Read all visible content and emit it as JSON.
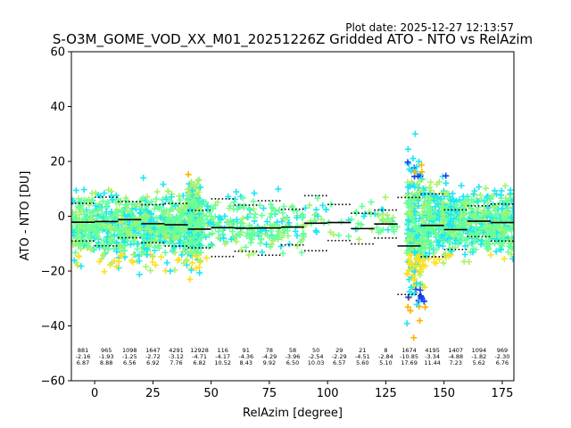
{
  "header": {
    "plot_date": "Plot date: 2025-12-27 12:13:57",
    "title": "S-O3M_GOME_VOD_XX_M01_20251226Z Gridded ATO - NTO vs RelAzim"
  },
  "chart_data": {
    "type": "scatter",
    "title": "S-O3M_GOME_VOD_XX_M01_20251226Z Gridded ATO - NTO vs RelAzim",
    "xlabel": "RelAzim [degree]",
    "ylabel": "ATO - NTO [DU]",
    "xlim": [
      -10,
      180
    ],
    "ylim": [
      -60,
      60
    ],
    "xticks": [
      0,
      25,
      50,
      75,
      100,
      125,
      150,
      175
    ],
    "yticks": [
      -60,
      -40,
      -20,
      0,
      20,
      40,
      60
    ],
    "marker": "+",
    "colors": {
      "cyan": "#1ee6f5",
      "green": "#66ff99",
      "light_green": "#a6f26b",
      "yellow": "#ffe01e",
      "orange": "#ffb000",
      "blue": "#1a3cf0",
      "median_line": "#000000"
    },
    "bins": [
      {
        "center": -5,
        "count": "881",
        "median": "-2.16",
        "spread": "6.87"
      },
      {
        "center": 5,
        "count": "965",
        "median": "-1.93",
        "spread": "8.88"
      },
      {
        "center": 15,
        "count": "1098",
        "median": "-1.25",
        "spread": "6.56"
      },
      {
        "center": 25,
        "count": "1647",
        "median": "-2.72",
        "spread": "6.92"
      },
      {
        "center": 35,
        "count": "4291",
        "median": "-3.12",
        "spread": "7.76"
      },
      {
        "center": 45,
        "count": "12928",
        "median": "-4.71",
        "spread": "6.82"
      },
      {
        "center": 55,
        "count": "116",
        "median": "-4.17",
        "spread": "10.52"
      },
      {
        "center": 65,
        "count": "91",
        "median": "-4.36",
        "spread": "8.43"
      },
      {
        "center": 75,
        "count": "78",
        "median": "-4.29",
        "spread": "9.92"
      },
      {
        "center": 85,
        "count": "58",
        "median": "-3.96",
        "spread": "6.50"
      },
      {
        "center": 95,
        "count": "50",
        "median": "-2.54",
        "spread": "10.03"
      },
      {
        "center": 105,
        "count": "29",
        "median": "-2.29",
        "spread": "6.57"
      },
      {
        "center": 115,
        "count": "21",
        "median": "-4.51",
        "spread": "5.60"
      },
      {
        "center": 125,
        "count": "8",
        "median": "-2.84",
        "spread": "5.10"
      },
      {
        "center": 135,
        "count": "1674",
        "median": "-10.85",
        "spread": "17.69"
      },
      {
        "center": 145,
        "count": "4195",
        "median": "-3.34",
        "spread": "11.44"
      },
      {
        "center": 155,
        "count": "1407",
        "median": "-4.88",
        "spread": "7.23"
      },
      {
        "center": 165,
        "count": "1094",
        "median": "-1.82",
        "spread": "5.62"
      },
      {
        "center": 175,
        "count": "969",
        "median": "-2.30",
        "spread": "6.76"
      }
    ]
  }
}
